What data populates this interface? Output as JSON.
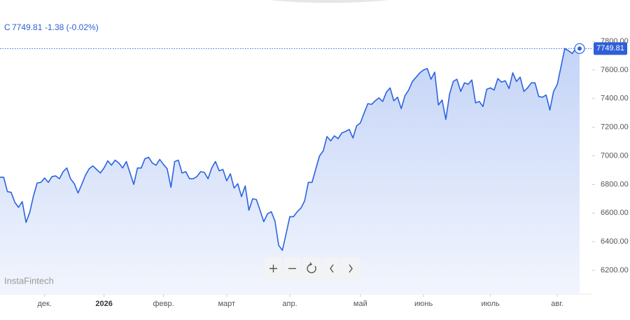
{
  "chart_data": {
    "type": "line",
    "symbol": "C",
    "last_price": 7749.81,
    "last_price_label": "7749.81",
    "change": "-1.38 (-0.02%)",
    "watermark": "InstaFintech",
    "color": "#2b63e0",
    "values": [
      6850,
      6850,
      6750,
      6745,
      6675,
      6640,
      6680,
      6535,
      6605,
      6720,
      6810,
      6815,
      6845,
      6815,
      6855,
      6860,
      6840,
      6890,
      6915,
      6840,
      6805,
      6740,
      6800,
      6865,
      6910,
      6930,
      6905,
      6880,
      6915,
      6965,
      6935,
      6970,
      6950,
      6915,
      6960,
      6880,
      6800,
      6915,
      6915,
      6980,
      6990,
      6950,
      6935,
      6975,
      6940,
      6910,
      6780,
      6960,
      6970,
      6880,
      6890,
      6840,
      6840,
      6855,
      6890,
      6885,
      6840,
      6915,
      6960,
      6895,
      6905,
      6825,
      6875,
      6775,
      6805,
      6715,
      6790,
      6620,
      6700,
      6695,
      6620,
      6540,
      6595,
      6610,
      6545,
      6375,
      6340,
      6455,
      6575,
      6575,
      6610,
      6635,
      6685,
      6815,
      6815,
      6910,
      7000,
      7035,
      7135,
      7105,
      7140,
      7120,
      7160,
      7170,
      7185,
      7125,
      7210,
      7230,
      7300,
      7365,
      7360,
      7385,
      7405,
      7380,
      7445,
      7475,
      7385,
      7410,
      7330,
      7420,
      7460,
      7520,
      7550,
      7580,
      7600,
      7610,
      7535,
      7585,
      7355,
      7390,
      7255,
      7430,
      7520,
      7535,
      7450,
      7510,
      7500,
      7530,
      7370,
      7380,
      7345,
      7465,
      7475,
      7460,
      7540,
      7515,
      7525,
      7470,
      7580,
      7520,
      7550,
      7450,
      7475,
      7510,
      7510,
      7415,
      7410,
      7425,
      7320,
      7450,
      7500,
      7625,
      7750,
      7735,
      7715,
      7750,
      7749.81
    ],
    "xticks": [
      {
        "value": 12,
        "label": "дек."
      },
      {
        "value": 28,
        "label": "2026"
      },
      {
        "value": 44,
        "label": "февр."
      },
      {
        "value": 61,
        "label": "март"
      },
      {
        "value": 78,
        "label": "апр."
      },
      {
        "value": 97,
        "label": "май"
      },
      {
        "value": 114,
        "label": "июнь"
      },
      {
        "value": 132,
        "label": "июль"
      },
      {
        "value": 150,
        "label": "авг."
      }
    ],
    "ylim": [
      6034,
      8089
    ],
    "yticks": [
      {
        "value": 6200,
        "label": "6200.00"
      },
      {
        "value": 6400,
        "label": "6400.00"
      },
      {
        "value": 6600,
        "label": "6600.00"
      },
      {
        "value": 6800,
        "label": "6800.00"
      },
      {
        "value": 7000,
        "label": "7000.00"
      },
      {
        "value": 7200,
        "label": "7200.00"
      },
      {
        "value": 7400,
        "label": "7400.00"
      },
      {
        "value": 7600,
        "label": "7600.00"
      },
      {
        "value": 7800,
        "label": "7800.00"
      }
    ]
  }
}
